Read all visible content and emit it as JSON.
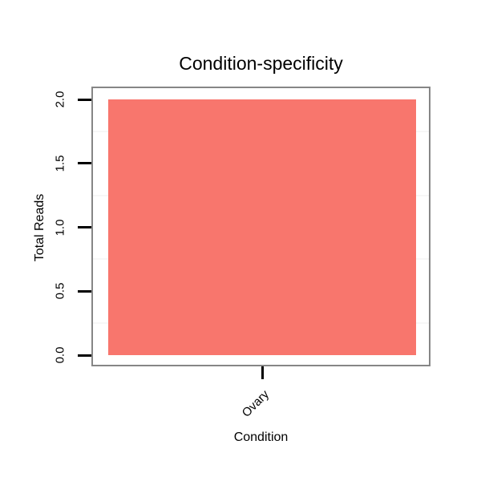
{
  "chart": {
    "title": "Condition-specificity",
    "x_axis_title": "Condition",
    "y_axis_title": "Total Reads"
  },
  "chart_data": {
    "type": "bar",
    "title": "Condition-specificity",
    "xlabel": "Condition",
    "ylabel": "Total Reads",
    "categories": [
      "Ovary"
    ],
    "values": [
      2.0
    ],
    "ylim": [
      0.0,
      2.0
    ],
    "yticks": [
      0.0,
      0.5,
      1.0,
      1.5,
      2.0
    ],
    "ytick_labels": [
      "0.0",
      "0.5",
      "1.0",
      "1.5",
      "2.0"
    ],
    "grid": "minor-only",
    "legend": "none",
    "bar_orientation": "vertical",
    "xtick_label_rotation_deg": 45
  },
  "colors": {
    "bar_fill": "#F8766D",
    "panel_border": "#868686",
    "minor_grid": "#F7F7F7",
    "tick": "#000000",
    "text": "#000000",
    "background": "#FFFFFF"
  }
}
